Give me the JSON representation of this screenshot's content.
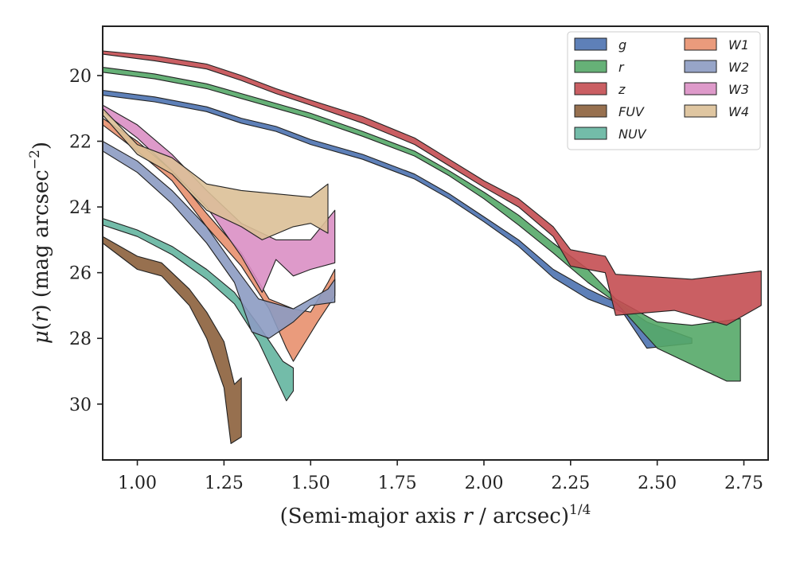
{
  "chart_data": {
    "type": "area",
    "xlabel": "(Semi-major axis r / arcsec)^1/4",
    "xlabel_parts": {
      "prefix": "(Semi-major axis ",
      "var": "r",
      "mid": " / arcsec)",
      "sup": "1/4"
    },
    "ylabel": "μ(r) (mag arcsec^−2)",
    "ylabel_parts": {
      "mu": "μ",
      "open": "(",
      "var": "r",
      "rest": ") (mag arcsec",
      "sup": "−2",
      "close": ")"
    },
    "xlim": [
      0.9,
      2.82
    ],
    "ylim": [
      31.7,
      18.5
    ],
    "y_inverted": true,
    "xticks": [
      "1.00",
      "1.25",
      "1.50",
      "1.75",
      "2.00",
      "2.25",
      "2.50",
      "2.75"
    ],
    "xtick_values": [
      1.0,
      1.25,
      1.5,
      1.75,
      2.0,
      2.25,
      2.5,
      2.75
    ],
    "yticks": [
      "20",
      "22",
      "24",
      "26",
      "28",
      "30"
    ],
    "ytick_values": [
      20,
      22,
      24,
      26,
      28,
      30
    ],
    "grid": false,
    "legend_placement": "top-right",
    "legend_columns": 2,
    "series": [
      {
        "name": "g",
        "color": "#4c72b0",
        "upper": [
          [
            0.9,
            20.45
          ],
          [
            1.05,
            20.65
          ],
          [
            1.2,
            20.95
          ],
          [
            1.3,
            21.3
          ],
          [
            1.4,
            21.55
          ],
          [
            1.5,
            21.95
          ],
          [
            1.65,
            22.4
          ],
          [
            1.8,
            23.0
          ],
          [
            1.9,
            23.6
          ],
          [
            2.0,
            24.3
          ],
          [
            2.1,
            25.0
          ],
          [
            2.2,
            25.9
          ],
          [
            2.3,
            26.5
          ],
          [
            2.4,
            27.0
          ],
          [
            2.47,
            27.5
          ],
          [
            2.6,
            28.0
          ]
        ],
        "lower": [
          [
            0.9,
            20.6
          ],
          [
            1.05,
            20.8
          ],
          [
            1.2,
            21.1
          ],
          [
            1.3,
            21.45
          ],
          [
            1.4,
            21.7
          ],
          [
            1.5,
            22.1
          ],
          [
            1.65,
            22.55
          ],
          [
            1.8,
            23.15
          ],
          [
            1.9,
            23.75
          ],
          [
            2.0,
            24.45
          ],
          [
            2.1,
            25.2
          ],
          [
            2.2,
            26.15
          ],
          [
            2.3,
            26.8
          ],
          [
            2.4,
            27.2
          ],
          [
            2.47,
            28.3
          ],
          [
            2.6,
            28.15
          ]
        ]
      },
      {
        "name": "r",
        "color": "#55a868",
        "upper": [
          [
            0.9,
            19.75
          ],
          [
            1.05,
            19.95
          ],
          [
            1.2,
            20.25
          ],
          [
            1.3,
            20.55
          ],
          [
            1.4,
            20.85
          ],
          [
            1.5,
            21.15
          ],
          [
            1.65,
            21.7
          ],
          [
            1.8,
            22.3
          ],
          [
            1.9,
            22.9
          ],
          [
            2.0,
            23.55
          ],
          [
            2.1,
            24.25
          ],
          [
            2.2,
            25.1
          ],
          [
            2.3,
            25.9
          ],
          [
            2.38,
            26.8
          ],
          [
            2.5,
            27.5
          ],
          [
            2.6,
            27.6
          ],
          [
            2.74,
            27.4
          ]
        ],
        "lower": [
          [
            0.9,
            19.9
          ],
          [
            1.05,
            20.1
          ],
          [
            1.2,
            20.4
          ],
          [
            1.3,
            20.7
          ],
          [
            1.4,
            21.0
          ],
          [
            1.5,
            21.3
          ],
          [
            1.65,
            21.85
          ],
          [
            1.8,
            22.45
          ],
          [
            1.9,
            23.05
          ],
          [
            2.0,
            23.75
          ],
          [
            2.1,
            24.55
          ],
          [
            2.2,
            25.4
          ],
          [
            2.3,
            26.3
          ],
          [
            2.38,
            26.9
          ],
          [
            2.5,
            28.3
          ],
          [
            2.7,
            29.3
          ],
          [
            2.74,
            29.3
          ]
        ]
      },
      {
        "name": "z",
        "color": "#c44e52",
        "upper": [
          [
            0.9,
            19.25
          ],
          [
            1.05,
            19.4
          ],
          [
            1.2,
            19.65
          ],
          [
            1.3,
            20.0
          ],
          [
            1.4,
            20.4
          ],
          [
            1.5,
            20.75
          ],
          [
            1.65,
            21.25
          ],
          [
            1.8,
            21.9
          ],
          [
            1.9,
            22.55
          ],
          [
            2.0,
            23.2
          ],
          [
            2.1,
            23.75
          ],
          [
            2.2,
            24.6
          ],
          [
            2.25,
            25.3
          ],
          [
            2.35,
            25.5
          ],
          [
            2.38,
            26.05
          ],
          [
            2.6,
            26.2
          ],
          [
            2.8,
            25.95
          ]
        ],
        "lower": [
          [
            0.9,
            19.35
          ],
          [
            1.05,
            19.55
          ],
          [
            1.2,
            19.8
          ],
          [
            1.3,
            20.15
          ],
          [
            1.4,
            20.55
          ],
          [
            1.5,
            20.9
          ],
          [
            1.65,
            21.45
          ],
          [
            1.8,
            22.1
          ],
          [
            1.9,
            22.75
          ],
          [
            2.0,
            23.4
          ],
          [
            2.1,
            24.0
          ],
          [
            2.2,
            24.9
          ],
          [
            2.25,
            25.8
          ],
          [
            2.35,
            26.0
          ],
          [
            2.38,
            27.3
          ],
          [
            2.55,
            27.15
          ],
          [
            2.7,
            27.6
          ],
          [
            2.8,
            27.0
          ]
        ]
      },
      {
        "name": "FUV",
        "color": "#8c613c",
        "upper": [
          [
            0.9,
            24.9
          ],
          [
            1.0,
            25.5
          ],
          [
            1.07,
            25.7
          ],
          [
            1.15,
            26.5
          ],
          [
            1.2,
            27.2
          ],
          [
            1.25,
            28.1
          ],
          [
            1.28,
            29.4
          ],
          [
            1.3,
            29.2
          ]
        ],
        "lower": [
          [
            0.9,
            25.1
          ],
          [
            1.0,
            25.9
          ],
          [
            1.07,
            26.1
          ],
          [
            1.15,
            27.0
          ],
          [
            1.2,
            28.0
          ],
          [
            1.25,
            29.5
          ],
          [
            1.27,
            31.2
          ],
          [
            1.3,
            31.0
          ]
        ]
      },
      {
        "name": "NUV",
        "color": "#64b5a0",
        "upper": [
          [
            0.9,
            24.35
          ],
          [
            1.0,
            24.7
          ],
          [
            1.1,
            25.2
          ],
          [
            1.2,
            25.9
          ],
          [
            1.28,
            26.6
          ],
          [
            1.35,
            27.6
          ],
          [
            1.42,
            28.7
          ],
          [
            1.45,
            28.9
          ]
        ],
        "lower": [
          [
            0.9,
            24.55
          ],
          [
            1.0,
            24.9
          ],
          [
            1.1,
            25.45
          ],
          [
            1.2,
            26.2
          ],
          [
            1.28,
            26.95
          ],
          [
            1.35,
            28.1
          ],
          [
            1.43,
            29.9
          ],
          [
            1.45,
            29.6
          ]
        ]
      },
      {
        "name": "W1",
        "color": "#e8906e",
        "upper": [
          [
            0.9,
            21.3
          ],
          [
            1.0,
            22.0
          ],
          [
            1.1,
            22.9
          ],
          [
            1.2,
            24.2
          ],
          [
            1.3,
            25.4
          ],
          [
            1.38,
            26.8
          ],
          [
            1.45,
            27.1
          ],
          [
            1.5,
            27.2
          ],
          [
            1.55,
            26.3
          ],
          [
            1.57,
            25.9
          ]
        ],
        "lower": [
          [
            0.9,
            21.5
          ],
          [
            1.0,
            22.3
          ],
          [
            1.1,
            23.2
          ],
          [
            1.2,
            24.6
          ],
          [
            1.3,
            25.8
          ],
          [
            1.38,
            27.1
          ],
          [
            1.43,
            28.3
          ],
          [
            1.45,
            28.7
          ],
          [
            1.52,
            27.5
          ],
          [
            1.57,
            26.7
          ]
        ]
      },
      {
        "name": "W2",
        "color": "#8c9bc2",
        "upper": [
          [
            0.9,
            22.0
          ],
          [
            1.0,
            22.6
          ],
          [
            1.1,
            23.5
          ],
          [
            1.2,
            24.6
          ],
          [
            1.28,
            25.8
          ],
          [
            1.35,
            26.8
          ],
          [
            1.45,
            27.1
          ],
          [
            1.55,
            26.5
          ],
          [
            1.57,
            26.2
          ]
        ],
        "lower": [
          [
            0.9,
            22.3
          ],
          [
            1.0,
            22.95
          ],
          [
            1.1,
            23.9
          ],
          [
            1.2,
            25.1
          ],
          [
            1.28,
            26.3
          ],
          [
            1.33,
            27.8
          ],
          [
            1.38,
            28.0
          ],
          [
            1.45,
            27.5
          ],
          [
            1.5,
            27.0
          ],
          [
            1.57,
            26.9
          ]
        ]
      },
      {
        "name": "W3",
        "color": "#da8fc4",
        "upper": [
          [
            0.9,
            20.9
          ],
          [
            1.0,
            21.5
          ],
          [
            1.1,
            22.4
          ],
          [
            1.2,
            23.5
          ],
          [
            1.3,
            24.5
          ],
          [
            1.4,
            25.0
          ],
          [
            1.5,
            25.0
          ],
          [
            1.57,
            24.1
          ]
        ],
        "lower": [
          [
            0.9,
            21.1
          ],
          [
            1.0,
            21.9
          ],
          [
            1.1,
            22.9
          ],
          [
            1.2,
            24.0
          ],
          [
            1.3,
            25.5
          ],
          [
            1.36,
            26.6
          ],
          [
            1.4,
            25.6
          ],
          [
            1.45,
            26.1
          ],
          [
            1.5,
            25.9
          ],
          [
            1.57,
            25.7
          ]
        ]
      },
      {
        "name": "W4",
        "color": "#dcc097",
        "upper": [
          [
            0.9,
            21.0
          ],
          [
            1.0,
            22.1
          ],
          [
            1.1,
            22.5
          ],
          [
            1.2,
            23.3
          ],
          [
            1.3,
            23.5
          ],
          [
            1.4,
            23.6
          ],
          [
            1.5,
            23.7
          ],
          [
            1.55,
            23.3
          ]
        ],
        "lower": [
          [
            0.9,
            21.2
          ],
          [
            1.0,
            22.4
          ],
          [
            1.1,
            23.0
          ],
          [
            1.2,
            24.1
          ],
          [
            1.3,
            24.6
          ],
          [
            1.36,
            25.0
          ],
          [
            1.45,
            24.6
          ],
          [
            1.5,
            24.5
          ],
          [
            1.55,
            24.8
          ]
        ]
      }
    ]
  }
}
